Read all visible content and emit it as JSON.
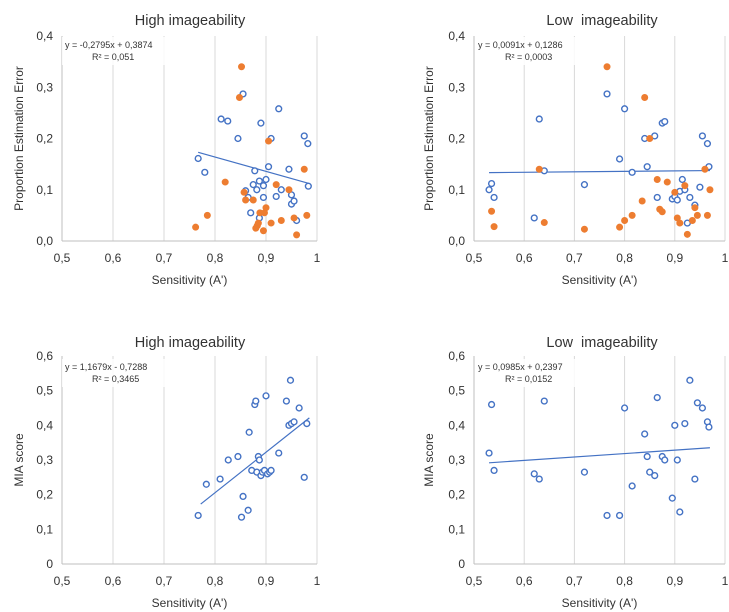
{
  "colors": {
    "blue": "#4472C4",
    "orange": "#ED7D31",
    "grid": "#D9D9D9",
    "text": "#404040"
  },
  "chart_data": [
    {
      "type": "scatter",
      "title": "High imageability",
      "xlabel": "Sensitivity (A')",
      "ylabel": "Proportion Estimation Error",
      "xlim": [
        0.5,
        1
      ],
      "ylim": [
        0,
        0.4
      ],
      "xticks": [
        "0,5",
        "0,6",
        "0,7",
        "0,8",
        "0,9",
        "1"
      ],
      "yticks": [
        "0,0",
        "0,1",
        "0,2",
        "0,3",
        "0,4"
      ],
      "grid": "vertical",
      "equation": "y = -0,2795x + 0,3874",
      "r2": "R² = 0,051",
      "trendline": {
        "slope": -0.2795,
        "intercept": 0.3874,
        "from": 0.767,
        "to": 0.985
      },
      "series": [
        {
          "marker": "hollow",
          "color": "#4472C4",
          "points": [
            [
              0.767,
              0.161
            ],
            [
              0.78,
              0.134
            ],
            [
              0.812,
              0.238
            ],
            [
              0.825,
              0.234
            ],
            [
              0.845,
              0.2
            ],
            [
              0.855,
              0.287
            ],
            [
              0.86,
              0.098
            ],
            [
              0.865,
              0.085
            ],
            [
              0.87,
              0.055
            ],
            [
              0.875,
              0.11
            ],
            [
              0.878,
              0.137
            ],
            [
              0.882,
              0.1
            ],
            [
              0.887,
              0.117
            ],
            [
              0.887,
              0.045
            ],
            [
              0.89,
              0.23
            ],
            [
              0.895,
              0.108
            ],
            [
              0.895,
              0.085
            ],
            [
              0.9,
              0.12
            ],
            [
              0.905,
              0.145
            ],
            [
              0.91,
              0.2
            ],
            [
              0.92,
              0.087
            ],
            [
              0.925,
              0.258
            ],
            [
              0.93,
              0.1
            ],
            [
              0.945,
              0.14
            ],
            [
              0.95,
              0.09
            ],
            [
              0.95,
              0.072
            ],
            [
              0.955,
              0.078
            ],
            [
              0.96,
              0.04
            ],
            [
              0.975,
              0.205
            ],
            [
              0.982,
              0.19
            ],
            [
              0.983,
              0.107
            ]
          ]
        },
        {
          "marker": "filled",
          "color": "#ED7D31",
          "points": [
            [
              0.762,
              0.027
            ],
            [
              0.785,
              0.05
            ],
            [
              0.82,
              0.115
            ],
            [
              0.848,
              0.28
            ],
            [
              0.852,
              0.34
            ],
            [
              0.857,
              0.095
            ],
            [
              0.86,
              0.08
            ],
            [
              0.875,
              0.08
            ],
            [
              0.88,
              0.025
            ],
            [
              0.883,
              0.03
            ],
            [
              0.885,
              0.035
            ],
            [
              0.888,
              0.055
            ],
            [
              0.895,
              0.02
            ],
            [
              0.897,
              0.055
            ],
            [
              0.9,
              0.065
            ],
            [
              0.905,
              0.195
            ],
            [
              0.91,
              0.035
            ],
            [
              0.92,
              0.11
            ],
            [
              0.93,
              0.04
            ],
            [
              0.945,
              0.1
            ],
            [
              0.955,
              0.045
            ],
            [
              0.96,
              0.012
            ],
            [
              0.975,
              0.14
            ],
            [
              0.98,
              0.05
            ]
          ]
        }
      ]
    },
    {
      "type": "scatter",
      "title": "Low  imageability",
      "xlabel": "Sensitivity (A')",
      "ylabel": "Proportion Estimation Error",
      "xlim": [
        0.5,
        1
      ],
      "ylim": [
        0,
        0.4
      ],
      "xticks": [
        "0,5",
        "0,6",
        "0,7",
        "0,8",
        "0,9",
        "1"
      ],
      "yticks": [
        "0,0",
        "0,1",
        "0,2",
        "0,3",
        "0,4"
      ],
      "grid": "vertical",
      "equation": "y = 0,0091x + 0,1286",
      "r2": "R² = 0,0003",
      "trendline": {
        "slope": 0.0091,
        "intercept": 0.1286,
        "from": 0.53,
        "to": 0.97
      },
      "series": [
        {
          "marker": "hollow",
          "color": "#4472C4",
          "points": [
            [
              0.53,
              0.1
            ],
            [
              0.535,
              0.112
            ],
            [
              0.54,
              0.085
            ],
            [
              0.62,
              0.045
            ],
            [
              0.63,
              0.238
            ],
            [
              0.64,
              0.137
            ],
            [
              0.72,
              0.11
            ],
            [
              0.765,
              0.287
            ],
            [
              0.79,
              0.16
            ],
            [
              0.8,
              0.258
            ],
            [
              0.815,
              0.134
            ],
            [
              0.84,
              0.2
            ],
            [
              0.845,
              0.145
            ],
            [
              0.86,
              0.205
            ],
            [
              0.865,
              0.085
            ],
            [
              0.875,
              0.23
            ],
            [
              0.88,
              0.233
            ],
            [
              0.895,
              0.082
            ],
            [
              0.9,
              0.087
            ],
            [
              0.905,
              0.08
            ],
            [
              0.91,
              0.097
            ],
            [
              0.915,
              0.12
            ],
            [
              0.92,
              0.1
            ],
            [
              0.925,
              0.035
            ],
            [
              0.93,
              0.085
            ],
            [
              0.94,
              0.07
            ],
            [
              0.95,
              0.105
            ],
            [
              0.955,
              0.205
            ],
            [
              0.965,
              0.19
            ],
            [
              0.968,
              0.145
            ]
          ]
        },
        {
          "marker": "filled",
          "color": "#ED7D31",
          "points": [
            [
              0.535,
              0.058
            ],
            [
              0.54,
              0.028
            ],
            [
              0.63,
              0.14
            ],
            [
              0.64,
              0.036
            ],
            [
              0.72,
              0.023
            ],
            [
              0.765,
              0.34
            ],
            [
              0.79,
              0.027
            ],
            [
              0.8,
              0.04
            ],
            [
              0.815,
              0.05
            ],
            [
              0.835,
              0.078
            ],
            [
              0.84,
              0.28
            ],
            [
              0.85,
              0.2
            ],
            [
              0.865,
              0.12
            ],
            [
              0.87,
              0.062
            ],
            [
              0.875,
              0.057
            ],
            [
              0.885,
              0.115
            ],
            [
              0.9,
              0.095
            ],
            [
              0.905,
              0.045
            ],
            [
              0.91,
              0.035
            ],
            [
              0.92,
              0.108
            ],
            [
              0.925,
              0.013
            ],
            [
              0.935,
              0.04
            ],
            [
              0.94,
              0.065
            ],
            [
              0.945,
              0.05
            ],
            [
              0.96,
              0.14
            ],
            [
              0.965,
              0.05
            ],
            [
              0.97,
              0.1
            ]
          ]
        }
      ]
    },
    {
      "type": "scatter",
      "title": "High imageability",
      "xlabel": "Sensitivity (A')",
      "ylabel": "MIA score",
      "xlim": [
        0.5,
        1
      ],
      "ylim": [
        0,
        0.6
      ],
      "xticks": [
        "0,5",
        "0,6",
        "0,7",
        "0,8",
        "0,9",
        "1"
      ],
      "yticks": [
        "0",
        "0,1",
        "0,2",
        "0,3",
        "0,4",
        "0,5",
        "0,6"
      ],
      "grid": "vertical",
      "equation": "y = 1,1679x - 0,7288",
      "r2": "R² = 0,3465",
      "trendline": {
        "slope": 1.1679,
        "intercept": -0.7288,
        "from": 0.772,
        "to": 0.985
      },
      "series": [
        {
          "marker": "hollow",
          "color": "#4472C4",
          "points": [
            [
              0.767,
              0.14
            ],
            [
              0.783,
              0.23
            ],
            [
              0.81,
              0.245
            ],
            [
              0.826,
              0.3
            ],
            [
              0.845,
              0.31
            ],
            [
              0.852,
              0.135
            ],
            [
              0.855,
              0.195
            ],
            [
              0.865,
              0.155
            ],
            [
              0.867,
              0.38
            ],
            [
              0.872,
              0.27
            ],
            [
              0.878,
              0.46
            ],
            [
              0.88,
              0.47
            ],
            [
              0.882,
              0.265
            ],
            [
              0.885,
              0.31
            ],
            [
              0.887,
              0.3
            ],
            [
              0.89,
              0.255
            ],
            [
              0.893,
              0.265
            ],
            [
              0.897,
              0.27
            ],
            [
              0.9,
              0.485
            ],
            [
              0.903,
              0.26
            ],
            [
              0.907,
              0.265
            ],
            [
              0.91,
              0.27
            ],
            [
              0.925,
              0.32
            ],
            [
              0.94,
              0.47
            ],
            [
              0.945,
              0.4
            ],
            [
              0.948,
              0.53
            ],
            [
              0.95,
              0.405
            ],
            [
              0.955,
              0.41
            ],
            [
              0.965,
              0.45
            ],
            [
              0.975,
              0.25
            ],
            [
              0.98,
              0.405
            ]
          ]
        }
      ]
    },
    {
      "type": "scatter",
      "title": "Low  imageability",
      "xlabel": "Sensitivity (A')",
      "ylabel": "MIA score",
      "xlim": [
        0.5,
        1
      ],
      "ylim": [
        0,
        0.6
      ],
      "xticks": [
        "0,5",
        "0,6",
        "0,7",
        "0,8",
        "0,9",
        "1"
      ],
      "yticks": [
        "0",
        "0,1",
        "0,2",
        "0,3",
        "0,4",
        "0,5",
        "0,6"
      ],
      "grid": "vertical",
      "equation": "y = 0,0985x + 0,2397",
      "r2": "R² = 0,0152",
      "trendline": {
        "slope": 0.0985,
        "intercept": 0.2397,
        "from": 0.53,
        "to": 0.97
      },
      "series": [
        {
          "marker": "hollow",
          "color": "#4472C4",
          "points": [
            [
              0.53,
              0.32
            ],
            [
              0.535,
              0.46
            ],
            [
              0.54,
              0.27
            ],
            [
              0.62,
              0.26
            ],
            [
              0.63,
              0.245
            ],
            [
              0.64,
              0.47
            ],
            [
              0.72,
              0.265
            ],
            [
              0.765,
              0.14
            ],
            [
              0.79,
              0.14
            ],
            [
              0.8,
              0.45
            ],
            [
              0.815,
              0.225
            ],
            [
              0.84,
              0.375
            ],
            [
              0.845,
              0.31
            ],
            [
              0.85,
              0.265
            ],
            [
              0.86,
              0.255
            ],
            [
              0.865,
              0.48
            ],
            [
              0.875,
              0.31
            ],
            [
              0.88,
              0.3
            ],
            [
              0.895,
              0.19
            ],
            [
              0.9,
              0.4
            ],
            [
              0.905,
              0.3
            ],
            [
              0.91,
              0.15
            ],
            [
              0.92,
              0.405
            ],
            [
              0.93,
              0.53
            ],
            [
              0.94,
              0.245
            ],
            [
              0.945,
              0.465
            ],
            [
              0.955,
              0.45
            ],
            [
              0.965,
              0.41
            ],
            [
              0.968,
              0.395
            ]
          ]
        }
      ]
    }
  ]
}
